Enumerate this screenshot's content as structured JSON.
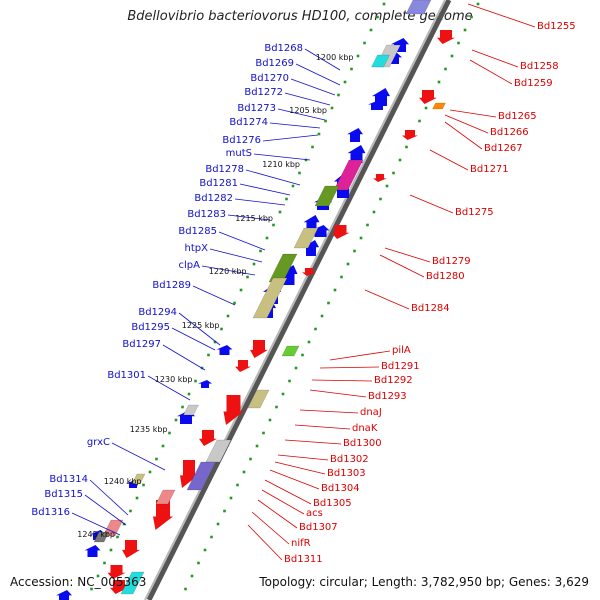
{
  "title": "Bdellovibrio bacteriovorus HD100, complete genome",
  "accession": "Accession: NC_005363",
  "topology": "Topology: circular; Length: 3,782,950 bp; Genes: 3,629",
  "colors": {
    "backbone": "#8a8a8a",
    "forward_label": "#1010cc",
    "reverse_label": "#dd0000",
    "forward_gene": "#0a0aee",
    "reverse_gene": "#ee1111",
    "tick_dot": "#229922"
  },
  "scale_ticks": [
    "1200 kbp",
    "1205 kbp",
    "1210 kbp",
    "1215 kbp",
    "1220 kbp",
    "1225 kbp",
    "1230 kbp",
    "1235 kbp",
    "1240 kbp",
    "1245 kbp"
  ],
  "left_labels": [
    "Bd1268",
    "Bd1269",
    "Bd1270",
    "Bd1272",
    "Bd1273",
    "Bd1274",
    "Bd1276",
    "mutS",
    "Bd1278",
    "Bd1281",
    "Bd1282",
    "Bd1283",
    "Bd1285",
    "htpX",
    "clpA",
    "Bd1289",
    "Bd1294",
    "Bd1295",
    "Bd1297",
    "Bd1301",
    "grxC",
    "Bd1314",
    "Bd1315",
    "Bd1316"
  ],
  "right_labels": [
    "Bd1255",
    "Bd1258",
    "Bd1259",
    "Bd1265",
    "Bd1266",
    "Bd1267",
    "Bd1271",
    "Bd1275",
    "Bd1279",
    "Bd1280",
    "Bd1284",
    "pilA",
    "Bd1291",
    "Bd1292",
    "Bd1293",
    "dnaJ",
    "dnaK",
    "Bd1300",
    "Bd1302",
    "Bd1303",
    "Bd1304",
    "Bd1305",
    "acs",
    "Bd1307",
    "nifR",
    "Bd1311"
  ]
}
